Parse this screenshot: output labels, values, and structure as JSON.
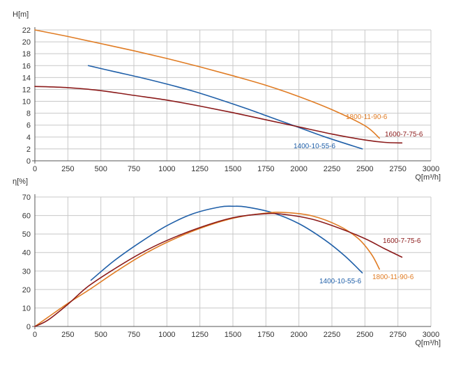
{
  "chart_data": [
    {
      "type": "line",
      "title": "",
      "ylabel": "H[m]",
      "xlabel": "Q[m³/h]",
      "xlim": [
        0,
        3000
      ],
      "ylim": [
        0,
        22
      ],
      "x_ticks": [
        0,
        250,
        500,
        750,
        1000,
        1250,
        1500,
        1750,
        2000,
        2250,
        2500,
        2750,
        3000
      ],
      "y_ticks": [
        0,
        2,
        4,
        6,
        8,
        10,
        12,
        14,
        16,
        18,
        20,
        22
      ],
      "grid": true,
      "series": [
        {
          "name": "1800-11-90-6",
          "color": "#e07c24",
          "points": [
            [
              0,
              22.0
            ],
            [
              250,
              20.9
            ],
            [
              500,
              19.7
            ],
            [
              750,
              18.5
            ],
            [
              1000,
              17.2
            ],
            [
              1250,
              15.8
            ],
            [
              1500,
              14.3
            ],
            [
              1750,
              12.7
            ],
            [
              2000,
              10.8
            ],
            [
              2250,
              8.6
            ],
            [
              2500,
              5.9
            ],
            [
              2610,
              3.8
            ]
          ]
        },
        {
          "name": "1400-10-55-6",
          "color": "#1f5fa8",
          "points": [
            [
              405,
              16.0
            ],
            [
              600,
              15.0
            ],
            [
              800,
              14.0
            ],
            [
              1000,
              12.9
            ],
            [
              1200,
              11.7
            ],
            [
              1400,
              10.3
            ],
            [
              1600,
              8.8
            ],
            [
              1800,
              7.2
            ],
            [
              2000,
              5.6
            ],
            [
              2200,
              4.0
            ],
            [
              2480,
              2.0
            ]
          ]
        },
        {
          "name": "1600-7-75-6",
          "color": "#8b1a1a",
          "points": [
            [
              0,
              12.5
            ],
            [
              250,
              12.3
            ],
            [
              500,
              11.8
            ],
            [
              750,
              11.0
            ],
            [
              1000,
              10.2
            ],
            [
              1250,
              9.2
            ],
            [
              1500,
              8.1
            ],
            [
              1750,
              6.9
            ],
            [
              2000,
              5.7
            ],
            [
              2250,
              4.5
            ],
            [
              2500,
              3.5
            ],
            [
              2650,
              3.1
            ],
            [
              2780,
              3.0
            ]
          ]
        }
      ]
    },
    {
      "type": "line",
      "title": "",
      "ylabel": "η[%]",
      "xlabel": "Q[m³/h]",
      "xlim": [
        0,
        3000
      ],
      "ylim": [
        0,
        70
      ],
      "x_ticks": [
        0,
        250,
        500,
        750,
        1000,
        1250,
        1500,
        1750,
        2000,
        2250,
        2500,
        2750,
        3000
      ],
      "y_ticks": [
        0,
        10,
        20,
        30,
        40,
        50,
        60,
        70
      ],
      "grid": true,
      "series": [
        {
          "name": "1400-10-55-6",
          "color": "#1f5fa8",
          "points": [
            [
              425,
              25.0
            ],
            [
              600,
              35.5
            ],
            [
              800,
              45.6
            ],
            [
              1000,
              54.5
            ],
            [
              1200,
              61.0
            ],
            [
              1400,
              64.6
            ],
            [
              1500,
              65.0
            ],
            [
              1600,
              64.6
            ],
            [
              1800,
              61.5
            ],
            [
              2000,
              55.6
            ],
            [
              2200,
              46.6
            ],
            [
              2350,
              38.0
            ],
            [
              2480,
              29.0
            ]
          ]
        },
        {
          "name": "1800-11-90-6",
          "color": "#e07c24",
          "points": [
            [
              0,
              0.0
            ],
            [
              100,
              5.0
            ],
            [
              250,
              12.5
            ],
            [
              425,
              20.5
            ],
            [
              600,
              29.0
            ],
            [
              800,
              38.0
            ],
            [
              1000,
              45.5
            ],
            [
              1250,
              53.0
            ],
            [
              1500,
              58.5
            ],
            [
              1750,
              61.3
            ],
            [
              1900,
              61.6
            ],
            [
              2100,
              59.8
            ],
            [
              2300,
              54.5
            ],
            [
              2450,
              47.5
            ],
            [
              2550,
              39.0
            ],
            [
              2610,
              31.0
            ]
          ]
        },
        {
          "name": "1600-7-75-6",
          "color": "#8b1a1a",
          "points": [
            [
              0,
              0.0
            ],
            [
              100,
              3.5
            ],
            [
              250,
              12.0
            ],
            [
              400,
              21.5
            ],
            [
              600,
              31.0
            ],
            [
              800,
              39.5
            ],
            [
              1000,
              46.5
            ],
            [
              1250,
              53.5
            ],
            [
              1500,
              58.8
            ],
            [
              1750,
              61.0
            ],
            [
              1900,
              60.5
            ],
            [
              2100,
              58.0
            ],
            [
              2300,
              53.3
            ],
            [
              2500,
              47.5
            ],
            [
              2650,
              42.0
            ],
            [
              2780,
              37.5
            ]
          ]
        }
      ]
    }
  ]
}
